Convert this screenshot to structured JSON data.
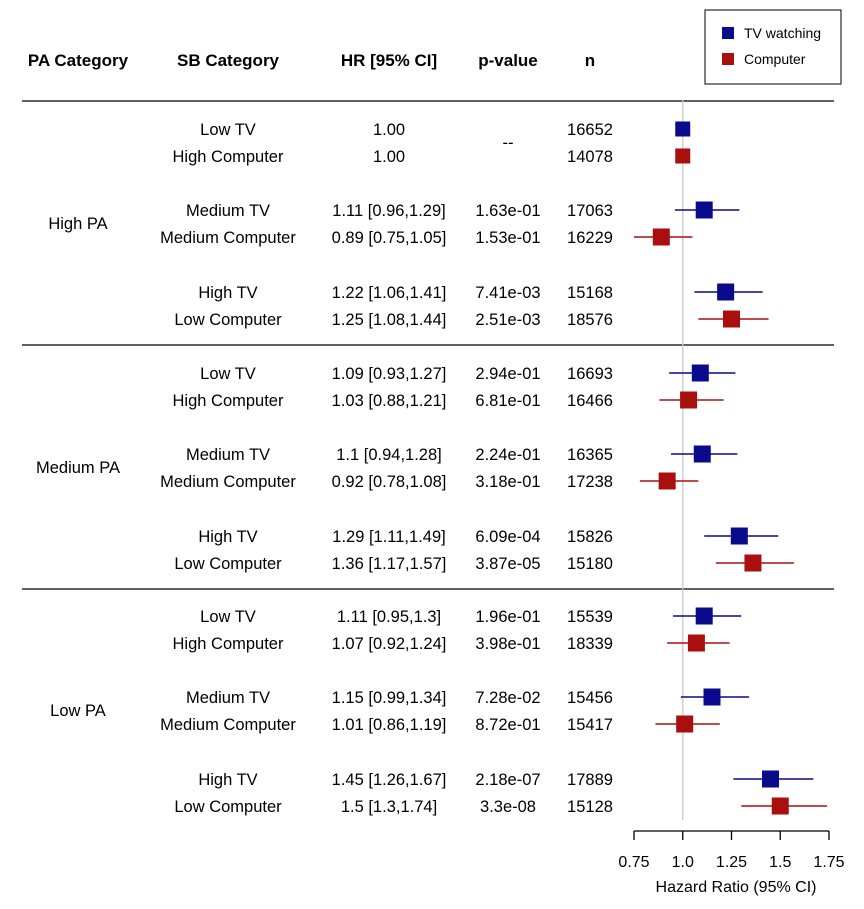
{
  "headers": {
    "pa": "PA Category",
    "sb": "SB Category",
    "hr": "HR [95% CI]",
    "p": "p-value",
    "n": "n"
  },
  "reference_p": "--",
  "groups": [
    {
      "pa": "High PA",
      "rows": [
        {
          "sb": "Low TV",
          "hr": "1.00",
          "p": "",
          "n": "16652",
          "series": "tv",
          "est": 1.0,
          "lo": 1.0,
          "hi": 1.0
        },
        {
          "sb": "High Computer",
          "hr": "1.00",
          "p": "",
          "n": "14078",
          "series": "comp",
          "est": 1.0,
          "lo": 1.0,
          "hi": 1.0
        },
        {
          "sb": "Medium TV",
          "hr": "1.11 [0.96,1.29]",
          "p": "1.63e-01",
          "n": "17063",
          "series": "tv",
          "est": 1.11,
          "lo": 0.96,
          "hi": 1.29
        },
        {
          "sb": "Medium Computer",
          "hr": "0.89 [0.75,1.05]",
          "p": "1.53e-01",
          "n": "16229",
          "series": "comp",
          "est": 0.89,
          "lo": 0.75,
          "hi": 1.05
        },
        {
          "sb": "High TV",
          "hr": "1.22 [1.06,1.41]",
          "p": "7.41e-03",
          "n": "15168",
          "series": "tv",
          "est": 1.22,
          "lo": 1.06,
          "hi": 1.41
        },
        {
          "sb": "Low Computer",
          "hr": "1.25 [1.08,1.44]",
          "p": "2.51e-03",
          "n": "18576",
          "series": "comp",
          "est": 1.25,
          "lo": 1.08,
          "hi": 1.44
        }
      ]
    },
    {
      "pa": "Medium PA",
      "rows": [
        {
          "sb": "Low TV",
          "hr": "1.09 [0.93,1.27]",
          "p": "2.94e-01",
          "n": "16693",
          "series": "tv",
          "est": 1.09,
          "lo": 0.93,
          "hi": 1.27
        },
        {
          "sb": "High Computer",
          "hr": "1.03 [0.88,1.21]",
          "p": "6.81e-01",
          "n": "16466",
          "series": "comp",
          "est": 1.03,
          "lo": 0.88,
          "hi": 1.21
        },
        {
          "sb": "Medium TV",
          "hr": "1.1 [0.94,1.28]",
          "p": "2.24e-01",
          "n": "16365",
          "series": "tv",
          "est": 1.1,
          "lo": 0.94,
          "hi": 1.28
        },
        {
          "sb": "Medium Computer",
          "hr": "0.92 [0.78,1.08]",
          "p": "3.18e-01",
          "n": "17238",
          "series": "comp",
          "est": 0.92,
          "lo": 0.78,
          "hi": 1.08
        },
        {
          "sb": "High TV",
          "hr": "1.29 [1.11,1.49]",
          "p": "6.09e-04",
          "n": "15826",
          "series": "tv",
          "est": 1.29,
          "lo": 1.11,
          "hi": 1.49
        },
        {
          "sb": "Low Computer",
          "hr": "1.36 [1.17,1.57]",
          "p": "3.87e-05",
          "n": "15180",
          "series": "comp",
          "est": 1.36,
          "lo": 1.17,
          "hi": 1.57
        }
      ]
    },
    {
      "pa": "Low PA",
      "rows": [
        {
          "sb": "Low TV",
          "hr": "1.11 [0.95,1.3]",
          "p": "1.96e-01",
          "n": "15539",
          "series": "tv",
          "est": 1.11,
          "lo": 0.95,
          "hi": 1.3
        },
        {
          "sb": "High Computer",
          "hr": "1.07 [0.92,1.24]",
          "p": "3.98e-01",
          "n": "18339",
          "series": "comp",
          "est": 1.07,
          "lo": 0.92,
          "hi": 1.24
        },
        {
          "sb": "Medium TV",
          "hr": "1.15 [0.99,1.34]",
          "p": "7.28e-02",
          "n": "15456",
          "series": "tv",
          "est": 1.15,
          "lo": 0.99,
          "hi": 1.34
        },
        {
          "sb": "Medium Computer",
          "hr": "1.01 [0.86,1.19]",
          "p": "8.72e-01",
          "n": "15417",
          "series": "comp",
          "est": 1.01,
          "lo": 0.86,
          "hi": 1.19
        },
        {
          "sb": "High TV",
          "hr": "1.45 [1.26,1.67]",
          "p": "2.18e-07",
          "n": "17889",
          "series": "tv",
          "est": 1.45,
          "lo": 1.26,
          "hi": 1.67
        },
        {
          "sb": "Low Computer",
          "hr": "1.5 [1.3,1.74]",
          "p": "3.3e-08",
          "n": "15128",
          "series": "comp",
          "est": 1.5,
          "lo": 1.3,
          "hi": 1.74
        }
      ]
    }
  ],
  "chart_data": {
    "type": "forest",
    "xlabel": "Hazard Ratio (95% CI)",
    "xlim": [
      0.75,
      1.75
    ],
    "xticks": [
      0.75,
      1.0,
      1.25,
      1.5,
      1.75
    ],
    "xtick_labels": [
      "0.75",
      "1.0",
      "1.25",
      "1.5",
      "1.75"
    ],
    "reference_line": 1.0,
    "legend_position": "top-right",
    "series": [
      {
        "key": "tv",
        "name": "TV watching",
        "color": "#0a0a8c"
      },
      {
        "key": "comp",
        "name": "Computer",
        "color": "#aa0f0f"
      }
    ]
  }
}
